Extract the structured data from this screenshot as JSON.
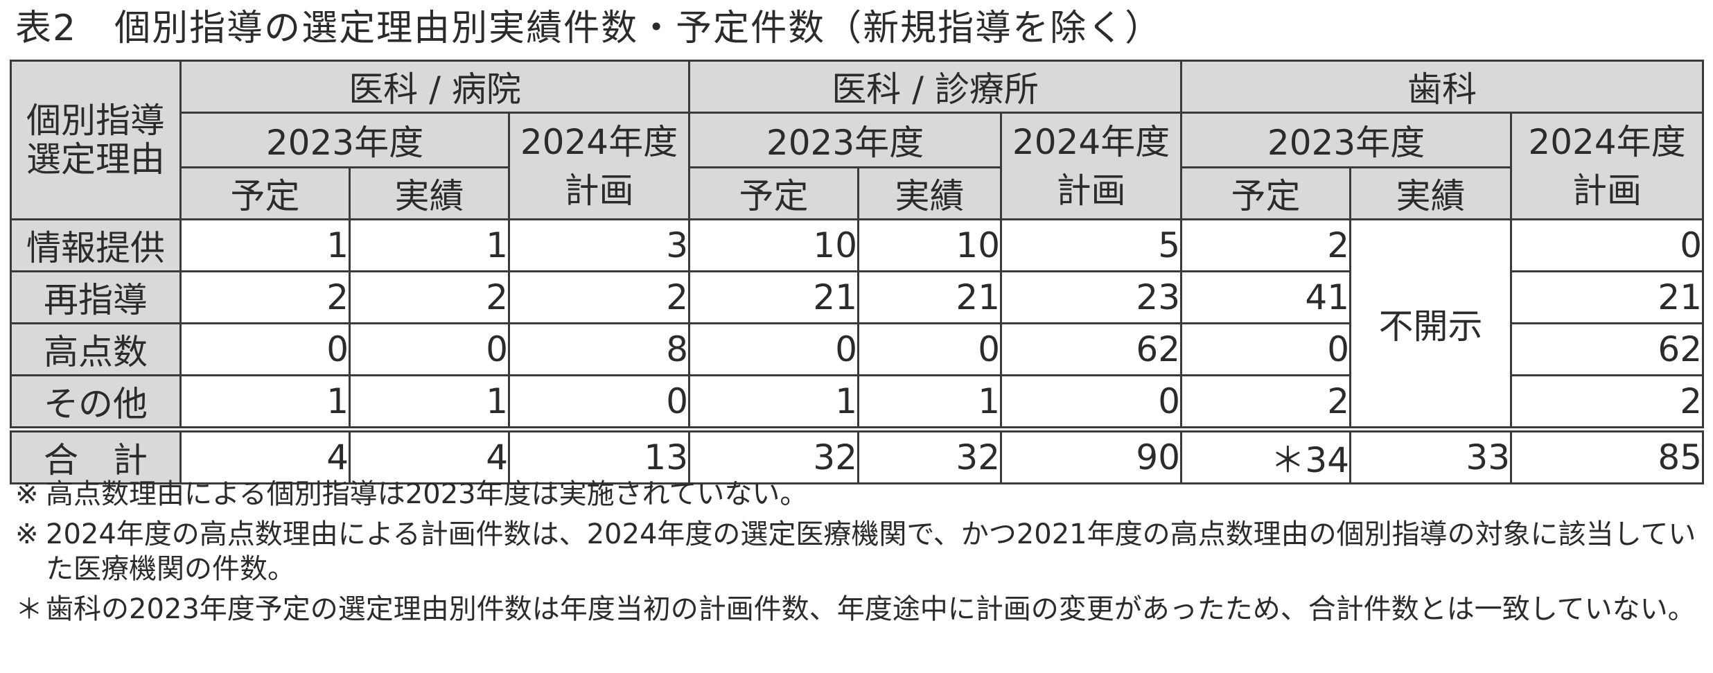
{
  "title": "表2　個別指導の選定理由別実績件数・予定件数（新規指導を除く）",
  "table": {
    "corner": "個別指導\n選定理由",
    "groups": [
      "医科 / 病院",
      "医科 / 診療所",
      "歯科"
    ],
    "year_2023": "2023年度",
    "year_2024": "2024年度",
    "plan_label": "計画",
    "sub_yotei": "予定",
    "sub_jisseki": "実績",
    "undisclosed": "不開示",
    "rows": [
      {
        "label": "情報提供",
        "values": [
          "1",
          "1",
          "3",
          "10",
          "10",
          "5",
          "2",
          "0"
        ]
      },
      {
        "label": "再指導",
        "values": [
          "2",
          "2",
          "2",
          "21",
          "21",
          "23",
          "41",
          "21"
        ]
      },
      {
        "label": "高点数",
        "values": [
          "0",
          "0",
          "8",
          "0",
          "0",
          "62",
          "0",
          "62"
        ]
      },
      {
        "label": "その他",
        "values": [
          "1",
          "1",
          "0",
          "1",
          "1",
          "0",
          "2",
          "2"
        ]
      }
    ],
    "total": {
      "label": "合　計",
      "values": [
        "4",
        "4",
        "13",
        "32",
        "32",
        "90",
        "＊34",
        "33",
        "85"
      ]
    }
  },
  "notes": [
    {
      "mark": "※",
      "text": "高点数理由による個別指導は2023年度は実施されていない。"
    },
    {
      "mark": "※",
      "text": "2024年度の高点数理由による計画件数は、2024年度の選定医療機関で、かつ2021年度の高点数理由の個別指導の対象に該当していた医療機関の件数。"
    },
    {
      "mark": "＊",
      "text": "歯科の2023年度予定の選定理由別件数は年度当初の計画件数、年度途中に計画の変更があったため、合計件数とは一致していない。"
    }
  ]
}
